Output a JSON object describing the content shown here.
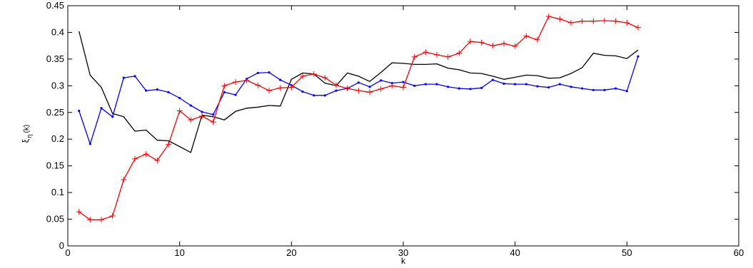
{
  "chart_data": {
    "type": "line",
    "title": "",
    "xlabel": "k",
    "ylabel_main": "ξ",
    "ylabel_sub": "η",
    "ylabel_tail": "(k)",
    "xlim": [
      0,
      60
    ],
    "ylim": [
      0,
      0.45
    ],
    "xticks": [
      0,
      10,
      20,
      30,
      40,
      50,
      60
    ],
    "yticks": [
      0,
      0.05,
      0.1,
      0.15,
      0.2,
      0.25,
      0.3,
      0.35,
      0.4,
      0.45
    ],
    "xtick_labels": [
      "0",
      "10",
      "20",
      "30",
      "40",
      "50",
      "60"
    ],
    "ytick_labels": [
      "0",
      "0.05",
      "0.1",
      "0.15",
      "0.2",
      "0.25",
      "0.3",
      "0.35",
      "0.4",
      "0.45"
    ],
    "grid": false,
    "x": [
      1,
      2,
      3,
      4,
      5,
      6,
      7,
      8,
      9,
      10,
      11,
      12,
      13,
      14,
      15,
      16,
      17,
      18,
      19,
      20,
      21,
      22,
      23,
      24,
      25,
      26,
      27,
      28,
      29,
      30,
      31,
      32,
      33,
      34,
      35,
      36,
      37,
      38,
      39,
      40,
      41,
      42,
      43,
      44,
      45,
      46,
      47,
      48,
      49,
      50,
      51
    ],
    "series": [
      {
        "color": "#000000",
        "marker": "none",
        "values": [
          0.402,
          0.32,
          0.297,
          0.248,
          0.242,
          0.215,
          0.217,
          0.198,
          0.197,
          0.186,
          0.175,
          0.245,
          0.242,
          0.236,
          0.252,
          0.258,
          0.26,
          0.263,
          0.262,
          0.312,
          0.324,
          0.322,
          0.305,
          0.3,
          0.324,
          0.318,
          0.308,
          0.325,
          0.343,
          0.342,
          0.34,
          0.34,
          0.341,
          0.333,
          0.33,
          0.324,
          0.323,
          0.318,
          0.312,
          0.316,
          0.32,
          0.319,
          0.314,
          0.315,
          0.323,
          0.334,
          0.361,
          0.357,
          0.356,
          0.351,
          0.367
        ]
      },
      {
        "color": "#0000ff",
        "marker": "dot",
        "values": [
          0.253,
          0.191,
          0.258,
          0.242,
          0.315,
          0.318,
          0.291,
          0.293,
          0.288,
          0.277,
          0.263,
          0.251,
          0.246,
          0.288,
          0.283,
          0.313,
          0.324,
          0.325,
          0.311,
          0.301,
          0.289,
          0.282,
          0.282,
          0.291,
          0.295,
          0.306,
          0.298,
          0.31,
          0.305,
          0.307,
          0.3,
          0.303,
          0.303,
          0.298,
          0.295,
          0.294,
          0.296,
          0.311,
          0.304,
          0.303,
          0.303,
          0.299,
          0.297,
          0.303,
          0.298,
          0.295,
          0.292,
          0.292,
          0.295,
          0.29,
          0.355
        ]
      },
      {
        "color": "#ff0000",
        "marker": "plus",
        "values": [
          0.064,
          0.049,
          0.049,
          0.056,
          0.124,
          0.163,
          0.172,
          0.16,
          0.19,
          0.253,
          0.236,
          0.243,
          0.232,
          0.3,
          0.307,
          0.31,
          0.301,
          0.291,
          0.296,
          0.297,
          0.318,
          0.322,
          0.315,
          0.301,
          0.295,
          0.291,
          0.288,
          0.294,
          0.3,
          0.297,
          0.354,
          0.363,
          0.358,
          0.354,
          0.361,
          0.383,
          0.381,
          0.375,
          0.379,
          0.374,
          0.393,
          0.386,
          0.43,
          0.425,
          0.418,
          0.421,
          0.421,
          0.422,
          0.421,
          0.418,
          0.409
        ]
      }
    ]
  }
}
